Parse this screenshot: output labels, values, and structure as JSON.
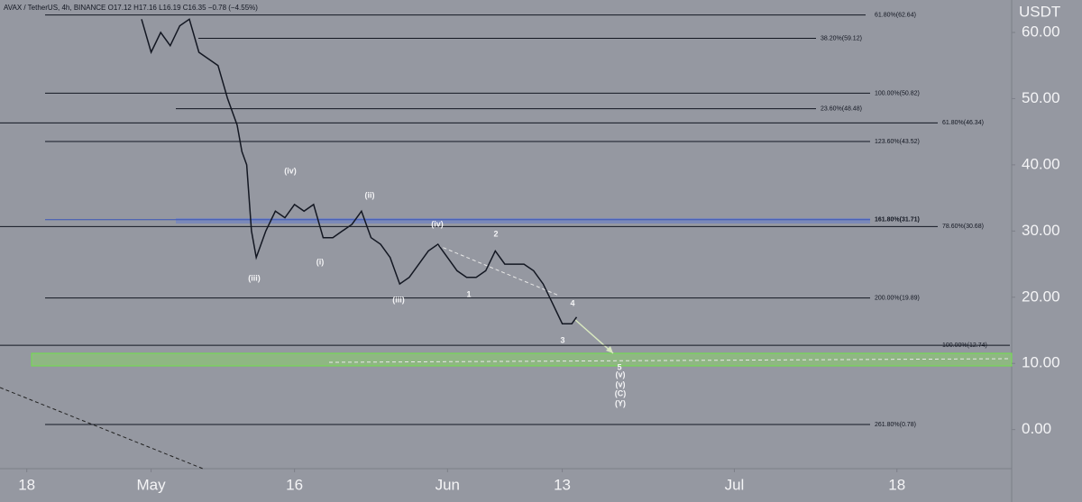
{
  "chart_data": {
    "type": "line",
    "header": "AVAX / TetherUS, 4h, BINANCE  O17.12 H17.16 L16.19 C16.35 −0.78 (−4.55%)",
    "y_axis_label": "USDT",
    "color": "#131722",
    "x": [
      12,
      13,
      14,
      15,
      16,
      17,
      18,
      19,
      20,
      21,
      22,
      22.5,
      23,
      23.5,
      24,
      25,
      26,
      27,
      28,
      29,
      30,
      31,
      32,
      33,
      34,
      35,
      36,
      37,
      38,
      39,
      40,
      41,
      42,
      43,
      44,
      45,
      46,
      47,
      48,
      49,
      50,
      51,
      52,
      53,
      54,
      55,
      56,
      57,
      57.5
    ],
    "values": [
      62,
      57,
      60,
      58,
      61,
      62,
      57,
      56,
      55,
      50,
      46,
      42,
      40,
      30,
      26,
      30,
      33,
      32,
      34,
      33,
      34,
      29,
      29,
      30,
      31,
      33,
      29,
      28,
      26,
      22,
      23,
      25,
      27,
      28,
      26,
      24,
      23,
      23,
      24,
      27,
      25,
      25,
      25,
      24,
      22,
      19,
      16,
      16,
      17
    ],
    "xlim": [
      -2.8,
      103
    ],
    "xticks": [
      {
        "value": 0,
        "label": "18"
      },
      {
        "value": 13,
        "label": "May"
      },
      {
        "value": 28,
        "label": "16"
      },
      {
        "value": 44,
        "label": "Jun"
      },
      {
        "value": 56,
        "label": "13"
      },
      {
        "value": 74,
        "label": "Jul"
      },
      {
        "value": 91,
        "label": "18"
      }
    ],
    "ylim": [
      -5.9,
      64.9
    ],
    "yticks": [
      {
        "value": 0,
        "label": "0.00"
      },
      {
        "value": 10,
        "label": "10.00"
      },
      {
        "value": 20,
        "label": "20.00"
      },
      {
        "value": 30,
        "label": "30.00"
      },
      {
        "value": 40,
        "label": "40.00"
      },
      {
        "value": 50,
        "label": "50.00"
      },
      {
        "value": 60,
        "label": "60.00"
      }
    ],
    "levels": [
      {
        "value": 62.64,
        "label": "61.80%(62.64)"
      },
      {
        "value": 59.12,
        "label": "38.20%(59.12)"
      },
      {
        "value": 50.82,
        "label": "100.00%(50.82)"
      },
      {
        "value": 48.48,
        "label": "23.60%(48.48)"
      },
      {
        "value": 46.34,
        "label": "61.80%(46.34)"
      },
      {
        "value": 43.52,
        "label": "123.60%(43.52)"
      },
      {
        "value": 31.71,
        "label": "161.80%(31.71)"
      },
      {
        "value": 30.68,
        "label": "78.60%(30.68)"
      },
      {
        "value": 19.89,
        "label": "200.00%(19.89)"
      },
      {
        "value": 12.74,
        "label": "100.00%(12.74)"
      },
      {
        "value": 0.78,
        "label": "261.80%(0.78)"
      }
    ],
    "annotations": [
      "(iv)",
      "(ii)",
      "(iv)",
      "2",
      "(i)",
      "(iii)",
      "(iii)",
      "1",
      "4",
      "3",
      "5",
      "(v)",
      "(v)",
      "(C)",
      "(Y)"
    ]
  }
}
